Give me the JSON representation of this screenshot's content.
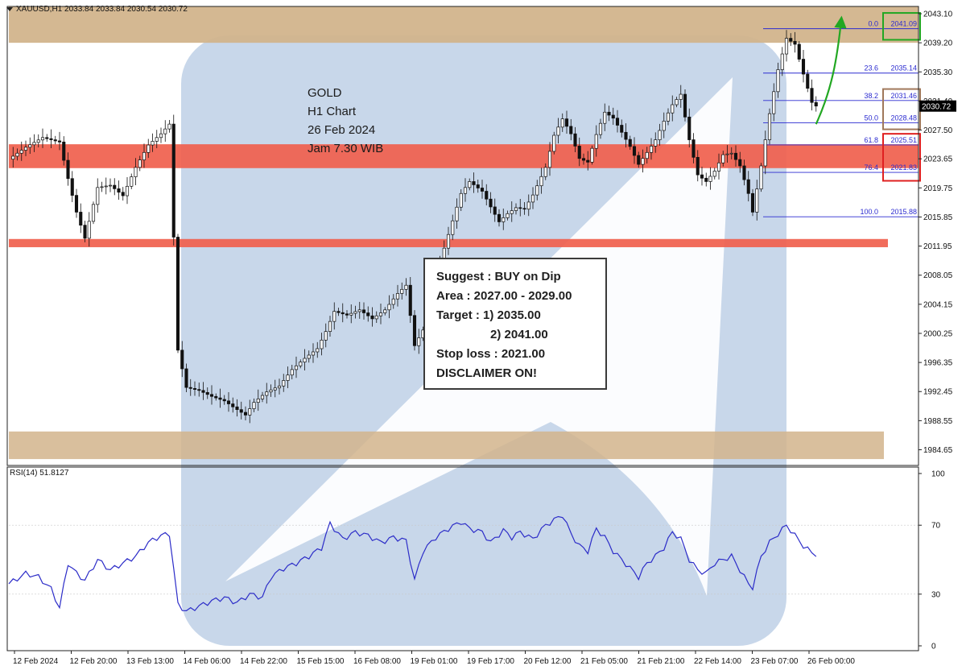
{
  "header": {
    "symbol_line": "XAUUSD,H1  2033.84 2033.84 2030.54 2030.72"
  },
  "annotation": {
    "title_lines": [
      "GOLD",
      "H1 Chart",
      "26 Feb 2024",
      "Jam 7.30 WIB"
    ]
  },
  "suggestion_box": {
    "line1": "Suggest : BUY on Dip",
    "line2": "Area : 2027.00 - 2029.00",
    "line3": "Target : 1) 2035.00",
    "line4": "2) 2041.00",
    "line5": "Stop loss : 2021.00",
    "line6": "DISCLAIMER ON!"
  },
  "rsi": {
    "label": "RSI(14) 51.8127"
  },
  "colors": {
    "resistance_zone": "#d2b48c",
    "support_red": "#f0604d",
    "fib_line": "#2b2bd0",
    "rsi_line": "#2c2cc8",
    "watermark": "#bed0e6",
    "green_box": "#22a722",
    "brown_box": "#a0785a",
    "red_box": "#e02020",
    "arrow": "#22a722"
  },
  "chart_data": [
    {
      "type": "candlestick",
      "instrument": "XAUUSD",
      "timeframe": "H1",
      "ohlc_last": {
        "open": 2033.84,
        "high": 2033.84,
        "low": 2030.54,
        "close": 2030.72
      },
      "current_price": 2030.72,
      "y_ticks": [
        2043.1,
        2039.2,
        2035.3,
        2031.4,
        2027.5,
        2023.65,
        2019.75,
        2015.85,
        2011.95,
        2008.05,
        2004.15,
        2000.25,
        1996.35,
        1992.45,
        1988.55,
        1984.65
      ],
      "y_tick_labels": [
        "2043.10",
        "2039.20",
        "2035.30",
        "2031.40",
        "2027.50",
        "2023.65",
        "2019.75",
        "2015.85",
        "2011.95",
        "2008.05",
        "2004.15",
        "2000.25",
        "1996.35",
        "1992.45",
        "1988.55",
        "1984.65"
      ],
      "x_tick_labels": [
        "12 Feb 2024",
        "12 Feb 20:00",
        "13 Feb 13:00",
        "14 Feb 06:00",
        "14 Feb 22:00",
        "15 Feb 15:00",
        "16 Feb 08:00",
        "19 Feb 01:00",
        "19 Feb 17:00",
        "20 Feb 12:00",
        "21 Feb 05:00",
        "21 Feb 21:00",
        "22 Feb 14:00",
        "23 Feb 07:00",
        "26 Feb 00:00"
      ],
      "price_path": [
        [
          0,
          2023.6
        ],
        [
          4,
          2025.2
        ],
        [
          8,
          2026.5
        ],
        [
          12,
          2025.9
        ],
        [
          14,
          2021.0
        ],
        [
          16,
          2016.5
        ],
        [
          18,
          2013.0
        ],
        [
          21,
          2019.8
        ],
        [
          24,
          2020.1
        ],
        [
          27,
          2018.7
        ],
        [
          30,
          2022.5
        ],
        [
          33,
          2025.5
        ],
        [
          36,
          2027.0
        ],
        [
          38,
          2028.3
        ],
        [
          40,
          1998.0
        ],
        [
          42,
          1993.0
        ],
        [
          45,
          1992.6
        ],
        [
          48,
          1991.8
        ],
        [
          51,
          1991.2
        ],
        [
          53,
          1990.4
        ],
        [
          56,
          1989.3
        ],
        [
          58,
          1991.0
        ],
        [
          61,
          1992.4
        ],
        [
          64,
          1993.2
        ],
        [
          67,
          1995.4
        ],
        [
          70,
          1996.9
        ],
        [
          73,
          1998.2
        ],
        [
          75,
          2000.5
        ],
        [
          77,
          2003.2
        ],
        [
          80,
          2002.7
        ],
        [
          83,
          2003.4
        ],
        [
          86,
          2002.2
        ],
        [
          89,
          2003.4
        ],
        [
          92,
          2005.6
        ],
        [
          94,
          2006.7
        ],
        [
          96,
          1998.6
        ],
        [
          98,
          2000.7
        ],
        [
          101,
          2008.0
        ],
        [
          104,
          2013.5
        ],
        [
          107,
          2019.0
        ],
        [
          109,
          2020.6
        ],
        [
          112,
          2019.3
        ],
        [
          114,
          2017.2
        ],
        [
          116,
          2015.2
        ],
        [
          118,
          2016.3
        ],
        [
          120,
          2017.1
        ],
        [
          122,
          2016.9
        ],
        [
          124,
          2018.8
        ],
        [
          127,
          2022.5
        ],
        [
          129,
          2026.8
        ],
        [
          131,
          2029.0
        ],
        [
          133,
          2027.0
        ],
        [
          135,
          2023.7
        ],
        [
          137,
          2023.2
        ],
        [
          139,
          2026.9
        ],
        [
          141,
          2029.9
        ],
        [
          143,
          2029.1
        ],
        [
          145,
          2027.2
        ],
        [
          147,
          2025.3
        ],
        [
          149,
          2022.9
        ],
        [
          151,
          2024.5
        ],
        [
          153,
          2026.2
        ],
        [
          155,
          2028.7
        ],
        [
          157,
          2030.9
        ],
        [
          159,
          2032.3
        ],
        [
          161,
          2026.2
        ],
        [
          163,
          2021.5
        ],
        [
          165,
          2020.6
        ],
        [
          167,
          2022.0
        ],
        [
          169,
          2024.2
        ],
        [
          171,
          2024.4
        ],
        [
          173,
          2022.7
        ],
        [
          175,
          2019.0
        ],
        [
          176,
          2016.5
        ],
        [
          178,
          2022.7
        ],
        [
          180,
          2029.7
        ],
        [
          182,
          2035.6
        ],
        [
          184,
          2039.8
        ],
        [
          186,
          2039.0
        ],
        [
          188,
          2035.0
        ],
        [
          190,
          2031.2
        ],
        [
          191,
          2030.72
        ]
      ],
      "zones": [
        {
          "kind": "resistance",
          "from": 2039.2,
          "to": 2044.3
        },
        {
          "kind": "support",
          "from": 2022.4,
          "to": 2025.6
        },
        {
          "kind": "support",
          "from": 2011.8,
          "to": 2012.9
        },
        {
          "kind": "support",
          "from": 1983.4,
          "to": 1987.1
        }
      ],
      "fibonacci": [
        {
          "level": "0.0",
          "price": "2041.09"
        },
        {
          "level": "23.6",
          "price": "2035.14"
        },
        {
          "level": "38.2",
          "price": "2031.46"
        },
        {
          "level": "50.0",
          "price": "2028.48"
        },
        {
          "level": "61.8",
          "price": "2025.51"
        },
        {
          "level": "76.4",
          "price": "2021.83"
        },
        {
          "level": "100.0",
          "price": "2015.88"
        }
      ],
      "projection_path": [
        [
          191,
          2028.3
        ],
        [
          194,
          2033.0
        ],
        [
          196,
          2039.0
        ],
        [
          197,
          2042.5
        ]
      ],
      "highlight_boxes": [
        {
          "color": "green",
          "from": 2039.6,
          "to": 2043.2
        },
        {
          "color": "brown",
          "from": 2027.6,
          "to": 2033.0
        },
        {
          "color": "red",
          "from": 2020.7,
          "to": 2027.0
        }
      ]
    },
    {
      "type": "line",
      "indicator": "RSI(14)",
      "value_last": 51.8127,
      "y_tick_labels": [
        "100",
        "70",
        "30",
        "0"
      ],
      "ylim": [
        0,
        100
      ],
      "levels": [
        70,
        30
      ],
      "series": [
        [
          0,
          36
        ],
        [
          4,
          42
        ],
        [
          7,
          40
        ],
        [
          10,
          33
        ],
        [
          12,
          22
        ],
        [
          14,
          48
        ],
        [
          16,
          42
        ],
        [
          18,
          38
        ],
        [
          21,
          50
        ],
        [
          24,
          44
        ],
        [
          27,
          48
        ],
        [
          30,
          52
        ],
        [
          33,
          60
        ],
        [
          36,
          64
        ],
        [
          38,
          65
        ],
        [
          40,
          24
        ],
        [
          42,
          20
        ],
        [
          45,
          23
        ],
        [
          48,
          26
        ],
        [
          51,
          28
        ],
        [
          54,
          25
        ],
        [
          57,
          30
        ],
        [
          60,
          28
        ],
        [
          62,
          40
        ],
        [
          65,
          45
        ],
        [
          68,
          48
        ],
        [
          71,
          52
        ],
        [
          74,
          57
        ],
        [
          76,
          71
        ],
        [
          79,
          62
        ],
        [
          82,
          66
        ],
        [
          85,
          64
        ],
        [
          88,
          60
        ],
        [
          91,
          63
        ],
        [
          94,
          61
        ],
        [
          96,
          38
        ],
        [
          98,
          55
        ],
        [
          101,
          63
        ],
        [
          104,
          68
        ],
        [
          107,
          72
        ],
        [
          109,
          68
        ],
        [
          112,
          66
        ],
        [
          114,
          60
        ],
        [
          117,
          67
        ],
        [
          119,
          63
        ],
        [
          121,
          66
        ],
        [
          124,
          62
        ],
        [
          127,
          70
        ],
        [
          129,
          73
        ],
        [
          131,
          76
        ],
        [
          133,
          65
        ],
        [
          135,
          58
        ],
        [
          137,
          55
        ],
        [
          139,
          68
        ],
        [
          141,
          63
        ],
        [
          143,
          55
        ],
        [
          145,
          50
        ],
        [
          147,
          45
        ],
        [
          149,
          40
        ],
        [
          151,
          48
        ],
        [
          153,
          52
        ],
        [
          155,
          57
        ],
        [
          157,
          66
        ],
        [
          159,
          62
        ],
        [
          161,
          50
        ],
        [
          163,
          44
        ],
        [
          165,
          42
        ],
        [
          167,
          48
        ],
        [
          169,
          50
        ],
        [
          171,
          52
        ],
        [
          173,
          44
        ],
        [
          175,
          36
        ],
        [
          176,
          34
        ],
        [
          178,
          52
        ],
        [
          180,
          60
        ],
        [
          182,
          65
        ],
        [
          184,
          70
        ],
        [
          186,
          64
        ],
        [
          188,
          58
        ],
        [
          190,
          54
        ],
        [
          191,
          51.8
        ]
      ]
    }
  ]
}
